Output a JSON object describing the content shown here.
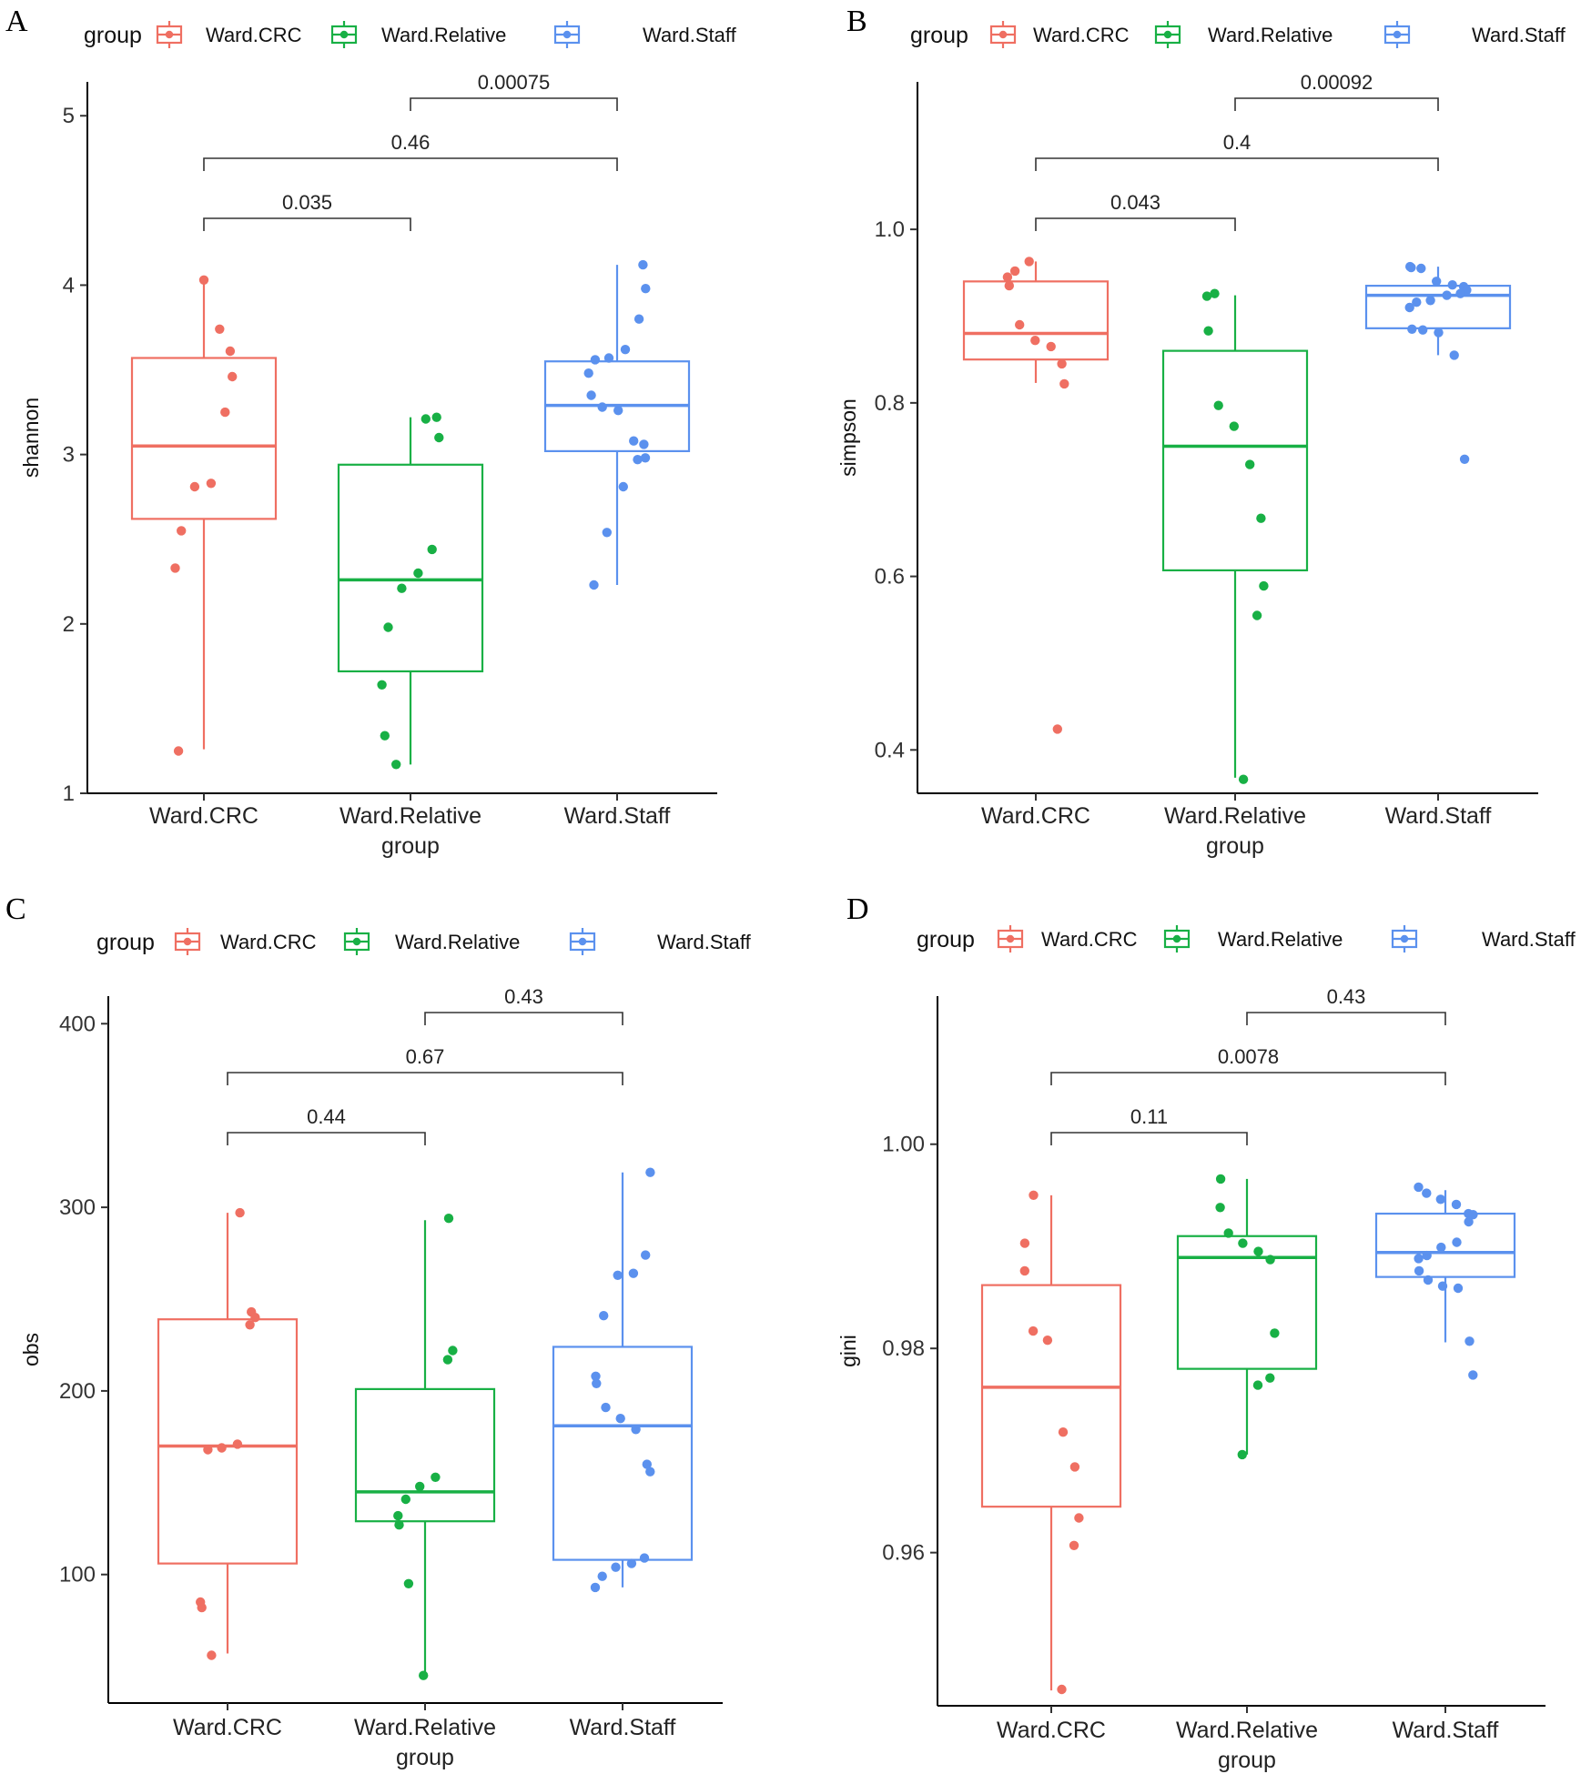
{
  "figure": {
    "group_label": "group",
    "x_axis_title": "group",
    "colors": {
      "Ward.CRC": "#ef6f62",
      "Ward.Relative": "#18b045",
      "Ward.Staff": "#5b91ee"
    }
  },
  "chart_data": [
    {
      "panel": "A",
      "type": "box",
      "title": "",
      "ylabel": "shannon",
      "xlabel": "group",
      "ylim": [
        1,
        5.2
      ],
      "yticks": [
        1,
        2,
        3,
        4,
        5
      ],
      "categories": [
        "Ward.CRC",
        "Ward.Relative",
        "Ward.Staff"
      ],
      "legend": {
        "title": "group",
        "entries": [
          "Ward.CRC",
          "Ward.Relative",
          "Ward.Staff"
        ]
      },
      "boxes": [
        {
          "group": "Ward.CRC",
          "min": 1.26,
          "q1": 2.62,
          "median": 3.05,
          "q3": 3.57,
          "max": 4.03
        },
        {
          "group": "Ward.Relative",
          "min": 1.17,
          "q1": 1.72,
          "median": 2.26,
          "q3": 2.94,
          "max": 3.22
        },
        {
          "group": "Ward.Staff",
          "min": 2.23,
          "q1": 3.02,
          "median": 3.29,
          "q3": 3.55,
          "max": 4.12
        }
      ],
      "points": [
        {
          "group": "Ward.CRC",
          "values": [
            4.03,
            3.74,
            3.61,
            3.46,
            3.25,
            2.83,
            2.81,
            2.55,
            2.33,
            1.25
          ]
        },
        {
          "group": "Ward.Relative",
          "values": [
            3.21,
            3.22,
            3.1,
            2.44,
            2.3,
            2.21,
            1.98,
            1.64,
            1.34,
            1.17
          ]
        },
        {
          "group": "Ward.Staff",
          "values": [
            4.12,
            3.98,
            3.8,
            3.62,
            3.57,
            3.56,
            3.48,
            3.35,
            3.28,
            3.26,
            3.08,
            3.06,
            2.98,
            2.97,
            2.81,
            2.54,
            2.23
          ]
        }
      ],
      "comparisons": [
        {
          "from": "Ward.CRC",
          "to": "Ward.Relative",
          "label": "0.035",
          "level": 1
        },
        {
          "from": "Ward.CRC",
          "to": "Ward.Staff",
          "label": "0.46",
          "level": 2
        },
        {
          "from": "Ward.Relative",
          "to": "Ward.Staff",
          "label": "0.00075",
          "level": 3
        }
      ]
    },
    {
      "panel": "B",
      "type": "box",
      "title": "",
      "ylabel": "simpson",
      "xlabel": "group",
      "ylim": [
        0.35,
        1.17
      ],
      "yticks": [
        0.4,
        0.6,
        0.8,
        1.0
      ],
      "ytick_labels": [
        "0.4",
        "0.6",
        "0.8",
        "1.0"
      ],
      "categories": [
        "Ward.CRC",
        "Ward.Relative",
        "Ward.Staff"
      ],
      "legend": {
        "title": "group",
        "entries": [
          "Ward.CRC",
          "Ward.Relative",
          "Ward.Staff"
        ]
      },
      "boxes": [
        {
          "group": "Ward.CRC",
          "min": 0.823,
          "q1": 0.85,
          "median": 0.88,
          "q3": 0.94,
          "max": 0.963
        },
        {
          "group": "Ward.Relative",
          "min": 0.368,
          "q1": 0.607,
          "median": 0.75,
          "q3": 0.86,
          "max": 0.924
        },
        {
          "group": "Ward.Staff",
          "min": 0.855,
          "q1": 0.886,
          "median": 0.924,
          "q3": 0.935,
          "max": 0.957
        }
      ],
      "points": [
        {
          "group": "Ward.CRC",
          "values": [
            0.963,
            0.952,
            0.945,
            0.935,
            0.89,
            0.872,
            0.865,
            0.845,
            0.822,
            0.424
          ]
        },
        {
          "group": "Ward.Relative",
          "values": [
            0.926,
            0.923,
            0.883,
            0.797,
            0.773,
            0.729,
            0.667,
            0.589,
            0.555,
            0.366
          ]
        },
        {
          "group": "Ward.Staff",
          "values": [
            0.957,
            0.956,
            0.955,
            0.94,
            0.936,
            0.934,
            0.93,
            0.926,
            0.924,
            0.918,
            0.916,
            0.91,
            0.885,
            0.884,
            0.881,
            0.855,
            0.735
          ]
        }
      ],
      "comparisons": [
        {
          "from": "Ward.CRC",
          "to": "Ward.Relative",
          "label": "0.043",
          "level": 1
        },
        {
          "from": "Ward.CRC",
          "to": "Ward.Staff",
          "label": "0.4",
          "level": 2
        },
        {
          "from": "Ward.Relative",
          "to": "Ward.Staff",
          "label": "0.00092",
          "level": 3
        }
      ]
    },
    {
      "panel": "C",
      "type": "box",
      "title": "",
      "ylabel": "obs",
      "xlabel": "group",
      "ylim": [
        30,
        415
      ],
      "yticks": [
        100,
        200,
        300,
        400
      ],
      "categories": [
        "Ward.CRC",
        "Ward.Relative",
        "Ward.Staff"
      ],
      "legend": {
        "title": "group",
        "entries": [
          "Ward.CRC",
          "Ward.Relative",
          "Ward.Staff"
        ]
      },
      "boxes": [
        {
          "group": "Ward.CRC",
          "min": 57,
          "q1": 106,
          "median": 170,
          "q3": 239,
          "max": 297
        },
        {
          "group": "Ward.Relative",
          "min": 45,
          "q1": 129,
          "median": 145,
          "q3": 201,
          "max": 293
        },
        {
          "group": "Ward.Staff",
          "min": 93,
          "q1": 108,
          "median": 181,
          "q3": 224,
          "max": 319
        }
      ],
      "points": [
        {
          "group": "Ward.CRC",
          "values": [
            297,
            243,
            240,
            236,
            171,
            169,
            168,
            85,
            82,
            56
          ]
        },
        {
          "group": "Ward.Relative",
          "values": [
            294,
            222,
            217,
            153,
            148,
            141,
            132,
            127,
            95,
            45
          ]
        },
        {
          "group": "Ward.Staff",
          "values": [
            319,
            274,
            264,
            263,
            241,
            208,
            204,
            191,
            185,
            179,
            160,
            156,
            109,
            106,
            104,
            99,
            93
          ]
        }
      ],
      "comparisons": [
        {
          "from": "Ward.CRC",
          "to": "Ward.Relative",
          "label": "0.44",
          "level": 1
        },
        {
          "from": "Ward.CRC",
          "to": "Ward.Staff",
          "label": "0.67",
          "level": 2
        },
        {
          "from": "Ward.Relative",
          "to": "Ward.Staff",
          "label": "0.43",
          "level": 3
        }
      ]
    },
    {
      "panel": "D",
      "type": "box",
      "title": "",
      "ylabel": "gini",
      "xlabel": "group",
      "ylim": [
        0.945,
        1.0145
      ],
      "yticks": [
        0.96,
        0.98,
        1.0
      ],
      "ytick_labels": [
        "0.96",
        "0.98",
        "1.00"
      ],
      "categories": [
        "Ward.CRC",
        "Ward.Relative",
        "Ward.Staff"
      ],
      "legend": {
        "title": "group",
        "entries": [
          "Ward.CRC",
          "Ward.Relative",
          "Ward.Staff"
        ]
      },
      "boxes": [
        {
          "group": "Ward.CRC",
          "min": 0.9465,
          "q1": 0.9645,
          "median": 0.9762,
          "q3": 0.9862,
          "max": 0.995
        },
        {
          "group": "Ward.Relative",
          "min": 0.9696,
          "q1": 0.978,
          "median": 0.9889,
          "q3": 0.991,
          "max": 0.9966
        },
        {
          "group": "Ward.Staff",
          "min": 0.9806,
          "q1": 0.987,
          "median": 0.9894,
          "q3": 0.9932,
          "max": 0.9955
        }
      ],
      "points": [
        {
          "group": "Ward.CRC",
          "values": [
            0.995,
            0.9903,
            0.9876,
            0.9817,
            0.9808,
            0.9718,
            0.9684,
            0.9634,
            0.9607,
            0.9466
          ]
        },
        {
          "group": "Ward.Relative",
          "values": [
            0.9966,
            0.9938,
            0.9913,
            0.9903,
            0.9895,
            0.9887,
            0.9815,
            0.9771,
            0.9764,
            0.9696
          ]
        },
        {
          "group": "Ward.Staff",
          "values": [
            0.9958,
            0.9952,
            0.9946,
            0.9941,
            0.9932,
            0.9931,
            0.9924,
            0.9904,
            0.9899,
            0.9891,
            0.9888,
            0.9876,
            0.9867,
            0.9861,
            0.9859,
            0.9807,
            0.9774
          ]
        }
      ],
      "comparisons": [
        {
          "from": "Ward.CRC",
          "to": "Ward.Relative",
          "label": "0.11",
          "level": 1
        },
        {
          "from": "Ward.CRC",
          "to": "Ward.Staff",
          "label": "0.0078",
          "level": 2
        },
        {
          "from": "Ward.Relative",
          "to": "Ward.Staff",
          "label": "0.43",
          "level": 3
        }
      ]
    }
  ]
}
